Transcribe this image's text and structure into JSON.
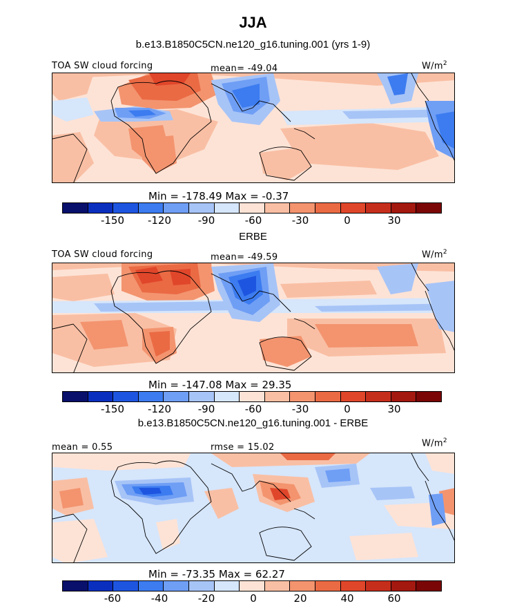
{
  "title": "JJA",
  "panels": [
    {
      "title": "b.e13.B1850C5CN.ne120_g16.tuning.001 (yrs 1-9)",
      "variable": "TOA SW cloud forcing",
      "stat": "mean= -49.04",
      "units": "W/m",
      "units_exp": "2",
      "minmax": "Min = -178.49 Max =  -0.37",
      "ticks": [
        "-150",
        "-120",
        "-90",
        "-60",
        "-30",
        "0",
        "30"
      ]
    },
    {
      "title": "ERBE",
      "variable": "TOA SW cloud forcing",
      "stat": "mean= -49.59",
      "units": "W/m",
      "units_exp": "2",
      "minmax": "Min = -147.08 Max =  29.35",
      "ticks": [
        "-150",
        "-120",
        "-90",
        "-60",
        "-30",
        "0",
        "30"
      ]
    },
    {
      "title": "b.e13.B1850C5CN.ne120_g16.tuning.001 - ERBE",
      "stat_left": "mean =  0.55",
      "stat": "rmse =  15.02",
      "units": "W/m",
      "units_exp": "2",
      "minmax": "Min = -73.35 Max =  62.27",
      "ticks": [
        "-60",
        "-40",
        "-20",
        "0",
        "20",
        "40",
        "60"
      ]
    }
  ],
  "colors": {
    "scale": [
      "#08106b",
      "#0a2fbf",
      "#1e55e0",
      "#3c7cf0",
      "#6f9ef5",
      "#a7c4f7",
      "#d6e6fb",
      "#fde3d6",
      "#f9bfa4",
      "#f3946f",
      "#ea6a44",
      "#e0462a",
      "#c62e1c",
      "#a3180f",
      "#7a0606"
    ]
  }
}
